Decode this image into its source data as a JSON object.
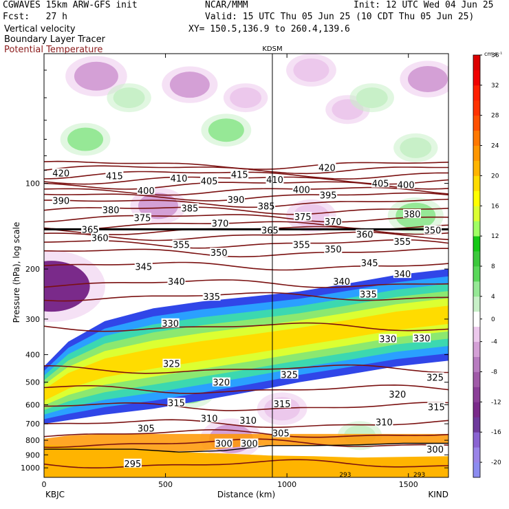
{
  "header": {
    "model": "CGWAVES 15km ARW-GFS init",
    "org": "NCAR/MMM",
    "init": "Init: 12 UTC Wed 04 Jun 25",
    "fcst": "Fcst:   27 h",
    "valid": "Valid: 15 UTC Thu 05 Jun 25 (10 CDT Thu 05 Jun 25)",
    "field1": "Vertical velocity",
    "field2": "Boundary Layer Tracer",
    "field3": "Potential Temperature",
    "xy": "XY= 150.5,136.9 to 260.4,139.6"
  },
  "colors": {
    "theta": "#7a1010",
    "field3_text": "#8b1a1a",
    "pbl": "#000000"
  },
  "chart_data": {
    "type": "cross-section",
    "marker_label": "KDSM",
    "marker_x_km": 940,
    "xlabel": "Distance (km)",
    "ylabel": "Pressure (hPa), log scale",
    "x_range_km": [
      0,
      1665
    ],
    "x_ticks": [
      0,
      500,
      1000,
      1500
    ],
    "x_tick_labels": [
      "0",
      "500",
      "1000",
      "1500"
    ],
    "x_end_labels": [
      "KBJC",
      "KIND"
    ],
    "y_range_hpa": [
      1080,
      35
    ],
    "y_scale": "log",
    "y_ticks": [
      100,
      200,
      300,
      400,
      500,
      600,
      700,
      800,
      900,
      1000
    ],
    "colorbar": {
      "units": "cm s⁻¹",
      "tick_labels": [
        "36",
        "32",
        "28",
        "24",
        "20",
        "16",
        "12",
        "8",
        "4",
        "0",
        "-4",
        "-8",
        "-12",
        "-16",
        "-20"
      ],
      "levels": [
        -22,
        -20,
        -18,
        -16,
        -14,
        -12,
        -10,
        -8,
        -6,
        -4,
        -2,
        2,
        4,
        6,
        8,
        10,
        12,
        14,
        16,
        18,
        20,
        22,
        24,
        26,
        28,
        30,
        32,
        34,
        36,
        38,
        40
      ],
      "colors": [
        "#8c8cf0",
        "#9a84e8",
        "#8a63d2",
        "#6e3a9c",
        "#7a2a8a",
        "#8b3f98",
        "#a05aa8",
        "#b87cc0",
        "#d4a0d6",
        "#ecc8ec",
        "#ffffff",
        "#c8f0c8",
        "#96e896",
        "#5ad85a",
        "#3cc83c",
        "#14c814",
        "#a0ff64",
        "#dcff32",
        "#ffff00",
        "#ffdc00",
        "#ffb400",
        "#ff9600",
        "#ff7800",
        "#ff5000",
        "#ff3200",
        "#ff1e00",
        "#f00000",
        "#dc0000"
      ]
    },
    "shading": [
      {
        "value": -6,
        "x_km": 215,
        "p_hpa": 42
      },
      {
        "value": -5,
        "x_km": 600,
        "p_hpa": 45
      },
      {
        "value": -4,
        "x_km": 1100,
        "p_hpa": 40
      },
      {
        "value": -5,
        "x_km": 1580,
        "p_hpa": 43
      },
      {
        "value": -3,
        "x_km": 830,
        "p_hpa": 50
      },
      {
        "value": -3,
        "x_km": 1250,
        "p_hpa": 55
      },
      {
        "value": 3,
        "x_km": 350,
        "p_hpa": 50
      },
      {
        "value": 3,
        "x_km": 1350,
        "p_hpa": 50
      },
      {
        "value": 4,
        "x_km": 170,
        "p_hpa": 70
      },
      {
        "value": 4,
        "x_km": 750,
        "p_hpa": 65
      },
      {
        "value": 3,
        "x_km": 1530,
        "p_hpa": 75
      },
      {
        "value": -5,
        "x_km": 470,
        "p_hpa": 120
      },
      {
        "value": -4,
        "x_km": 1100,
        "p_hpa": 130
      },
      {
        "value": 5,
        "x_km": 1530,
        "p_hpa": 130
      },
      {
        "value": 4,
        "x_km": 1530,
        "p_hpa": 260
      },
      {
        "value": -14,
        "x_km": 30,
        "p_hpa": 230
      },
      {
        "value": -6,
        "x_km": 770,
        "p_hpa": 790
      },
      {
        "value": -4,
        "x_km": 980,
        "p_hpa": 620
      },
      {
        "value": 4,
        "x_km": 600,
        "p_hpa": 540
      },
      {
        "value": 3,
        "x_km": 1300,
        "p_hpa": 770
      }
    ],
    "tracer_band": {
      "x_km": [
        0,
        100,
        250,
        450,
        650,
        850,
        1050,
        1250,
        1450,
        1665
      ],
      "top_hpa": [
        440,
        360,
        305,
        275,
        260,
        250,
        240,
        225,
        210,
        200
      ],
      "bottom_hpa": [
        700,
        680,
        650,
        620,
        580,
        540,
        500,
        470,
        440,
        420
      ]
    },
    "theta_contours": [
      {
        "theta": 295,
        "p_hpa": 970
      },
      {
        "theta": 300,
        "p_hpa": 820
      },
      {
        "theta": 305,
        "p_hpa": 760
      },
      {
        "theta": 310,
        "p_hpa": 700
      },
      {
        "theta": 315,
        "p_hpa": 610
      },
      {
        "theta": 320,
        "p_hpa": 530
      },
      {
        "theta": 325,
        "p_hpa": 450
      },
      {
        "theta": 330,
        "p_hpa": 320
      },
      {
        "theta": 335,
        "p_hpa": 250
      },
      {
        "theta": 340,
        "p_hpa": 225
      },
      {
        "theta": 345,
        "p_hpa": 195
      },
      {
        "theta": 350,
        "p_hpa": 175
      },
      {
        "theta": 355,
        "p_hpa": 163
      },
      {
        "theta": 360,
        "p_hpa": 153
      },
      {
        "theta": 365,
        "p_hpa": 146
      },
      {
        "theta": 370,
        "p_hpa": 140
      },
      {
        "theta": 375,
        "p_hpa": 132
      },
      {
        "theta": 380,
        "p_hpa": 124
      },
      {
        "theta": 385,
        "p_hpa": 117
      },
      {
        "theta": 390,
        "p_hpa": 111
      },
      {
        "theta": 395,
        "p_hpa": 106
      },
      {
        "theta": 400,
        "p_hpa": 101
      },
      {
        "theta": 405,
        "p_hpa": 97
      },
      {
        "theta": 410,
        "p_hpa": 93
      },
      {
        "theta": 415,
        "p_hpa": 89
      },
      {
        "theta": 420,
        "p_hpa": 86
      }
    ],
    "theta_labels": [
      {
        "text": "420",
        "x_km": 70,
        "p_hpa": 92
      },
      {
        "text": "415",
        "x_km": 290,
        "p_hpa": 94
      },
      {
        "text": "410",
        "x_km": 555,
        "p_hpa": 96
      },
      {
        "text": "405",
        "x_km": 680,
        "p_hpa": 98
      },
      {
        "text": "415",
        "x_km": 805,
        "p_hpa": 93
      },
      {
        "text": "410",
        "x_km": 950,
        "p_hpa": 97
      },
      {
        "text": "420",
        "x_km": 1165,
        "p_hpa": 88
      },
      {
        "text": "405",
        "x_km": 1385,
        "p_hpa": 100
      },
      {
        "text": "400",
        "x_km": 1490,
        "p_hpa": 101
      },
      {
        "text": "390",
        "x_km": 70,
        "p_hpa": 115
      },
      {
        "text": "400",
        "x_km": 420,
        "p_hpa": 106
      },
      {
        "text": "400",
        "x_km": 1060,
        "p_hpa": 105
      },
      {
        "text": "395",
        "x_km": 1170,
        "p_hpa": 110
      },
      {
        "text": "380",
        "x_km": 275,
        "p_hpa": 124
      },
      {
        "text": "385",
        "x_km": 600,
        "p_hpa": 122
      },
      {
        "text": "390",
        "x_km": 790,
        "p_hpa": 114
      },
      {
        "text": "385",
        "x_km": 915,
        "p_hpa": 120
      },
      {
        "text": "380",
        "x_km": 1515,
        "p_hpa": 128
      },
      {
        "text": "375",
        "x_km": 405,
        "p_hpa": 132
      },
      {
        "text": "370",
        "x_km": 725,
        "p_hpa": 138
      },
      {
        "text": "375",
        "x_km": 1065,
        "p_hpa": 131
      },
      {
        "text": "370",
        "x_km": 1190,
        "p_hpa": 136
      },
      {
        "text": "360",
        "x_km": 230,
        "p_hpa": 155
      },
      {
        "text": "360",
        "x_km": 1320,
        "p_hpa": 151
      },
      {
        "text": "355",
        "x_km": 565,
        "p_hpa": 164
      },
      {
        "text": "355",
        "x_km": 1060,
        "p_hpa": 164
      },
      {
        "text": "350",
        "x_km": 720,
        "p_hpa": 175
      },
      {
        "text": "350",
        "x_km": 1190,
        "p_hpa": 170
      },
      {
        "text": "355",
        "x_km": 1475,
        "p_hpa": 160
      },
      {
        "text": "345",
        "x_km": 410,
        "p_hpa": 196
      },
      {
        "text": "345",
        "x_km": 1340,
        "p_hpa": 190
      },
      {
        "text": "340",
        "x_km": 545,
        "p_hpa": 221
      },
      {
        "text": "340",
        "x_km": 1225,
        "p_hpa": 221
      },
      {
        "text": "340",
        "x_km": 1475,
        "p_hpa": 208
      },
      {
        "text": "335",
        "x_km": 690,
        "p_hpa": 250
      },
      {
        "text": "335",
        "x_km": 1335,
        "p_hpa": 245
      },
      {
        "text": "330",
        "x_km": 520,
        "p_hpa": 310
      },
      {
        "text": "330",
        "x_km": 1415,
        "p_hpa": 352
      },
      {
        "text": "330",
        "x_km": 1555,
        "p_hpa": 350
      },
      {
        "text": "325",
        "x_km": 525,
        "p_hpa": 430
      },
      {
        "text": "325",
        "x_km": 1010,
        "p_hpa": 470
      },
      {
        "text": "325",
        "x_km": 1610,
        "p_hpa": 480
      },
      {
        "text": "320",
        "x_km": 730,
        "p_hpa": 500
      },
      {
        "text": "320",
        "x_km": 1455,
        "p_hpa": 550
      },
      {
        "text": "315",
        "x_km": 545,
        "p_hpa": 590
      },
      {
        "text": "315",
        "x_km": 980,
        "p_hpa": 595
      },
      {
        "text": "315",
        "x_km": 1615,
        "p_hpa": 610
      },
      {
        "text": "310",
        "x_km": 680,
        "p_hpa": 670
      },
      {
        "text": "310",
        "x_km": 840,
        "p_hpa": 680
      },
      {
        "text": "310",
        "x_km": 1400,
        "p_hpa": 690
      },
      {
        "text": "305",
        "x_km": 420,
        "p_hpa": 725
      },
      {
        "text": "305",
        "x_km": 975,
        "p_hpa": 755
      },
      {
        "text": "300",
        "x_km": 740,
        "p_hpa": 820
      },
      {
        "text": "300",
        "x_km": 845,
        "p_hpa": 820
      },
      {
        "text": "300",
        "x_km": 1610,
        "p_hpa": 860
      },
      {
        "text": "295",
        "x_km": 365,
        "p_hpa": 965
      },
      {
        "text": "365",
        "x_km": 190,
        "p_hpa": 145
      },
      {
        "text": "365",
        "x_km": 930,
        "p_hpa": 146
      },
      {
        "text": "350",
        "x_km": 1600,
        "p_hpa": 146
      }
    ],
    "tropopause_p_hpa": 145,
    "pbl_top_hpa": [
      860,
      860,
      860,
      880,
      870,
      835,
      835,
      830,
      820,
      820
    ],
    "terrain_top_hpa": [
      830,
      845,
      860,
      880,
      890,
      905,
      910,
      920,
      915,
      910
    ],
    "bottom_labels": [
      {
        "text": "293",
        "x_km": 1240
      },
      {
        "text": "293",
        "x_km": 1545
      }
    ]
  }
}
